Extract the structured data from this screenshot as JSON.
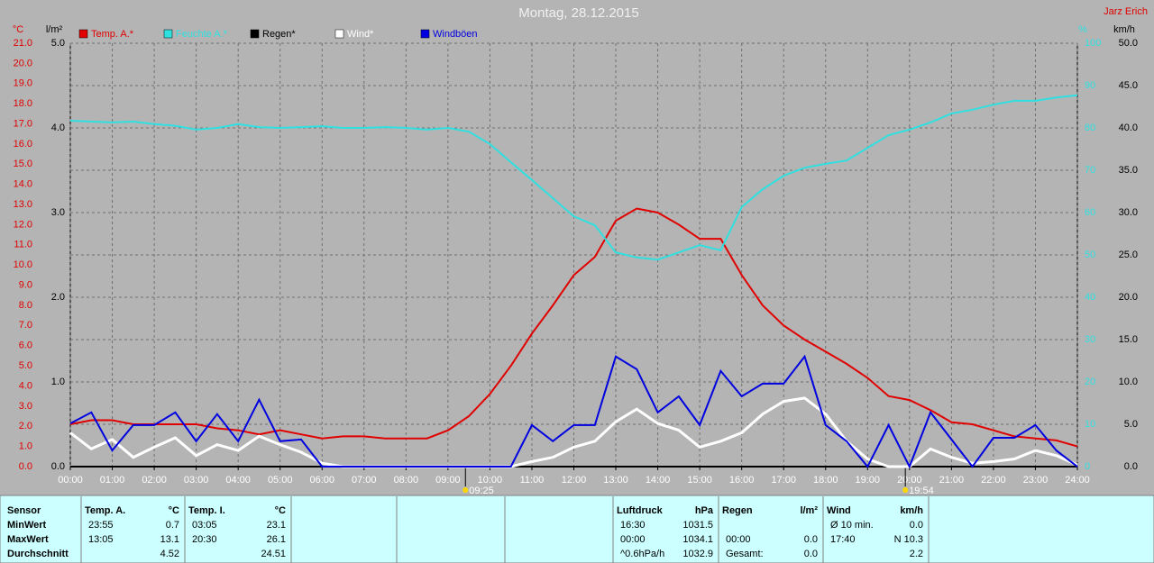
{
  "chart_data": {
    "type": "line",
    "title": "Montag, 28.12.2015",
    "author": "Jarz Erich",
    "x": [
      0,
      0.5,
      1,
      1.5,
      2,
      2.5,
      3,
      3.5,
      4,
      4.5,
      5,
      5.5,
      6,
      6.5,
      7,
      7.5,
      8,
      8.5,
      9,
      9.5,
      10,
      10.5,
      11,
      11.5,
      12,
      12.5,
      13,
      13.5,
      14,
      14.5,
      15,
      15.5,
      16,
      16.5,
      17,
      17.5,
      18,
      18.5,
      19,
      19.5,
      20,
      20.5,
      21,
      21.5,
      22,
      22.5,
      23,
      23.5,
      24
    ],
    "xlim": [
      0,
      24
    ],
    "xticks": [
      {
        "value": 0,
        "label": "00:00"
      },
      {
        "value": 1,
        "label": "01:00"
      },
      {
        "value": 2,
        "label": "02:00"
      },
      {
        "value": 3,
        "label": "03:00"
      },
      {
        "value": 4,
        "label": "04:00"
      },
      {
        "value": 5,
        "label": "05:00"
      },
      {
        "value": 6,
        "label": "06:00"
      },
      {
        "value": 7,
        "label": "07:00"
      },
      {
        "value": 8,
        "label": "08:00"
      },
      {
        "value": 9,
        "label": "09:00"
      },
      {
        "value": 10,
        "label": "10:00"
      },
      {
        "value": 11,
        "label": "11:00"
      },
      {
        "value": 12,
        "label": "12:00"
      },
      {
        "value": 13,
        "label": "13:00"
      },
      {
        "value": 14,
        "label": "14:00"
      },
      {
        "value": 15,
        "label": "15:00"
      },
      {
        "value": 16,
        "label": "16:00"
      },
      {
        "value": 17,
        "label": "17:00"
      },
      {
        "value": 18,
        "label": "18:00"
      },
      {
        "value": 19,
        "label": "19:00"
      },
      {
        "value": 20,
        "label": "20:00"
      },
      {
        "value": 21,
        "label": "21:00"
      },
      {
        "value": 22,
        "label": "22:00"
      },
      {
        "value": 23,
        "label": "23:00"
      },
      {
        "value": 24,
        "label": "24:00"
      }
    ],
    "annotations": [
      {
        "x": 9.4167,
        "label": "09:25"
      },
      {
        "x": 19.9,
        "label": "19:54"
      }
    ],
    "grid": true,
    "axes": [
      {
        "unit": "°C",
        "color": "#e00000",
        "lim": [
          0,
          21
        ],
        "ticks": [
          {
            "value": 0,
            "label": "0.0"
          },
          {
            "value": 1,
            "label": "1.0"
          },
          {
            "value": 2,
            "label": "2.0"
          },
          {
            "value": 3,
            "label": "3.0"
          },
          {
            "value": 4,
            "label": "4.0"
          },
          {
            "value": 5,
            "label": "5.0"
          },
          {
            "value": 6,
            "label": "6.0"
          },
          {
            "value": 7,
            "label": "7.0"
          },
          {
            "value": 8,
            "label": "8.0"
          },
          {
            "value": 9,
            "label": "9.0"
          },
          {
            "value": 10,
            "label": "10.0"
          },
          {
            "value": 11,
            "label": "11.0"
          },
          {
            "value": 12,
            "label": "12.0"
          },
          {
            "value": 13,
            "label": "13.0"
          },
          {
            "value": 14,
            "label": "14.0"
          },
          {
            "value": 15,
            "label": "15.0"
          },
          {
            "value": 16,
            "label": "16.0"
          },
          {
            "value": 17,
            "label": "17.0"
          },
          {
            "value": 18,
            "label": "18.0"
          },
          {
            "value": 19,
            "label": "19.0"
          },
          {
            "value": 20,
            "label": "20.0"
          },
          {
            "value": 21,
            "label": "21.0"
          }
        ]
      },
      {
        "unit": "l/m²",
        "color": "#000000",
        "lim": [
          0,
          5
        ],
        "ticks": [
          {
            "value": 0,
            "label": "0.0"
          },
          {
            "value": 1,
            "label": "1.0"
          },
          {
            "value": 2,
            "label": "2.0"
          },
          {
            "value": 3,
            "label": "3.0"
          },
          {
            "value": 4,
            "label": "4.0"
          },
          {
            "value": 5,
            "label": "5.0"
          }
        ]
      },
      {
        "unit": "%",
        "color": "#30e0e0",
        "lim": [
          0,
          100
        ],
        "ticks": [
          0,
          10,
          20,
          30,
          40,
          50,
          60,
          70,
          80,
          90,
          100
        ]
      },
      {
        "unit": "km/h",
        "color": "#000000",
        "lim": [
          0,
          50
        ],
        "ticks": [
          {
            "value": 0,
            "label": "0.0"
          },
          {
            "value": 5,
            "label": "5.0"
          },
          {
            "value": 10,
            "label": "10.0"
          },
          {
            "value": 15,
            "label": "15.0"
          },
          {
            "value": 20,
            "label": "20.0"
          },
          {
            "value": 25,
            "label": "25.0"
          },
          {
            "value": 30,
            "label": "30.0"
          },
          {
            "value": 35,
            "label": "35.0"
          },
          {
            "value": 40,
            "label": "40.0"
          },
          {
            "value": 45,
            "label": "45.0"
          },
          {
            "value": 50,
            "label": "50.0"
          }
        ]
      }
    ],
    "series": [
      {
        "name": "Temp. A.*",
        "color": "#e00000",
        "axis": 0,
        "values": [
          2.1,
          2.3,
          2.3,
          2.1,
          2.1,
          2.1,
          2.1,
          1.9,
          1.8,
          1.6,
          1.8,
          1.6,
          1.4,
          1.5,
          1.5,
          1.4,
          1.4,
          1.4,
          1.8,
          2.5,
          3.6,
          5.0,
          6.6,
          8.0,
          9.5,
          10.4,
          12.2,
          12.8,
          12.6,
          12.0,
          11.3,
          11.3,
          9.5,
          8.0,
          7.0,
          6.3,
          5.7,
          5.1,
          4.4,
          3.5,
          3.3,
          2.8,
          2.2,
          2.1,
          1.8,
          1.5,
          1.4,
          1.3,
          1.0
        ]
      },
      {
        "name": "Feuchte A.*",
        "color": "#30e0e0",
        "axis": 2,
        "values": [
          81.7,
          81.5,
          81.3,
          81.5,
          80.9,
          80.5,
          79.6,
          80.0,
          80.9,
          80.2,
          80.0,
          80.2,
          80.4,
          80.0,
          80.0,
          80.2,
          80.0,
          79.6,
          80.0,
          79.1,
          76.2,
          71.9,
          67.7,
          63.4,
          59.1,
          57.0,
          50.6,
          49.4,
          48.9,
          50.6,
          52.3,
          51.1,
          61.3,
          65.5,
          68.7,
          70.6,
          71.5,
          72.3,
          75.3,
          78.3,
          79.6,
          81.3,
          83.4,
          84.3,
          85.5,
          86.4,
          86.4,
          87.2,
          87.7
        ]
      },
      {
        "name": "Regen*",
        "color": "#000000",
        "axis": 1,
        "values": [
          0,
          0,
          0,
          0,
          0,
          0,
          0,
          0,
          0,
          0,
          0,
          0,
          0,
          0,
          0,
          0,
          0,
          0,
          0,
          0,
          0,
          0,
          0,
          0,
          0,
          0,
          0,
          0,
          0,
          0,
          0,
          0,
          0,
          0,
          0,
          0,
          0,
          0,
          0,
          0,
          0,
          0,
          0,
          0,
          0,
          0,
          0,
          0,
          0
        ]
      },
      {
        "name": "Wind*",
        "color": "#ffffff",
        "axis": 3,
        "values": [
          4.0,
          2.1,
          3.2,
          1.1,
          2.3,
          3.4,
          1.3,
          2.6,
          1.9,
          3.6,
          2.6,
          1.7,
          0.4,
          0,
          0,
          0,
          0,
          0,
          0,
          0,
          0,
          0,
          0.6,
          1.1,
          2.3,
          3.0,
          5.3,
          6.8,
          5.1,
          4.3,
          2.3,
          3.0,
          4.0,
          6.2,
          7.7,
          8.1,
          6.2,
          3.0,
          0.9,
          0,
          0,
          2.1,
          1.1,
          0.4,
          0.6,
          0.9,
          1.9,
          1.3,
          0.2
        ]
      },
      {
        "name": "Windböen",
        "color": "#0000e0",
        "axis": 3,
        "values": [
          5.1,
          6.4,
          1.9,
          4.9,
          4.9,
          6.4,
          3.0,
          6.2,
          3.0,
          7.9,
          3.0,
          3.2,
          0,
          0,
          0,
          0,
          0,
          0,
          0,
          0,
          0,
          0,
          4.9,
          3.0,
          4.9,
          4.9,
          13.0,
          11.5,
          6.4,
          8.3,
          4.9,
          11.3,
          8.3,
          9.8,
          9.8,
          13.0,
          4.9,
          3.0,
          0,
          4.9,
          0,
          6.4,
          3.2,
          0,
          3.4,
          3.4,
          4.9,
          1.9,
          0
        ]
      }
    ]
  },
  "stats": {
    "row_labels": [
      "Sensor",
      "MinWert",
      "MaxWert",
      "Durchschnitt"
    ],
    "groups": [
      {
        "name": "Temp. A.",
        "unit": "°C",
        "rows": [
          [
            "23:55",
            "0.7"
          ],
          [
            "13:05",
            "13.1"
          ],
          [
            null,
            "4.52"
          ]
        ]
      },
      {
        "name": "Temp. I.",
        "unit": "°C",
        "rows": [
          [
            "03:05",
            "23.1"
          ],
          [
            "20:30",
            "26.1"
          ],
          [
            null,
            "24.51"
          ]
        ]
      },
      {
        "name": "Luftdruck",
        "unit": "hPa",
        "rows": [
          [
            "16:30",
            "1031.5"
          ],
          [
            "00:00",
            "1034.1"
          ],
          [
            "^0.6hPa/h",
            "1032.9"
          ]
        ]
      },
      {
        "name": "Regen",
        "unit": "l/m²",
        "rows": [
          [
            null,
            null
          ],
          [
            "00:00",
            "0.0"
          ],
          [
            "Gesamt:",
            "0.0"
          ]
        ]
      },
      {
        "name": "Wind",
        "unit": "km/h",
        "rows": [
          [
            "Ø 10 min.",
            "0.0"
          ],
          [
            "17:40",
            "N 10.3"
          ],
          [
            null,
            "2.2"
          ]
        ]
      }
    ]
  }
}
